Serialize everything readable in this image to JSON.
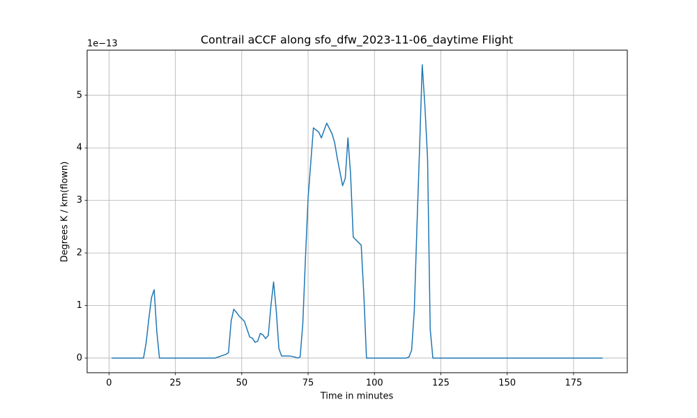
{
  "chart_data": {
    "type": "line",
    "title": "Contrail aCCF along sfo_dfw_2023-11-06_daytime Flight",
    "xlabel": "Time in minutes",
    "ylabel": "Degrees K / km(flown)",
    "y_offset_label": "1e−13",
    "color": "#1f77b4",
    "grid": true,
    "x": [
      1,
      13,
      14,
      15,
      16,
      17,
      18,
      19,
      40,
      44,
      45,
      46,
      47,
      48,
      49,
      51,
      53,
      54,
      55,
      56,
      57,
      58,
      59,
      60,
      61,
      62,
      63,
      64,
      65,
      68,
      70,
      71,
      72,
      73,
      74,
      75,
      77,
      79,
      80,
      82,
      84,
      85,
      86,
      88,
      89,
      90,
      91,
      92,
      95,
      96,
      97,
      112,
      113,
      114,
      115,
      116,
      117,
      118,
      119,
      120,
      121,
      122,
      186
    ],
    "values": [
      0,
      0,
      0.3,
      0.75,
      1.15,
      1.3,
      0.5,
      0,
      0,
      0.07,
      0.1,
      0.7,
      0.93,
      0.87,
      0.8,
      0.7,
      0.4,
      0.38,
      0.3,
      0.32,
      0.47,
      0.44,
      0.37,
      0.43,
      1.0,
      1.45,
      0.9,
      0.18,
      0.04,
      0.04,
      0.02,
      0,
      0.02,
      0.65,
      1.9,
      3.05,
      4.38,
      4.3,
      4.19,
      4.47,
      4.27,
      4.1,
      3.8,
      3.28,
      3.42,
      4.19,
      3.5,
      2.3,
      2.15,
      1.2,
      0,
      0,
      0.02,
      0.15,
      0.9,
      2.5,
      4.0,
      5.58,
      4.8,
      3.8,
      0.55,
      0,
      0
    ],
    "xlim": [
      -8.25,
      195.25
    ],
    "ylim": [
      -0.279,
      5.859
    ],
    "xticks": [
      0,
      25,
      50,
      75,
      100,
      125,
      150,
      175
    ],
    "yticks": [
      0,
      1,
      2,
      3,
      4,
      5
    ]
  }
}
